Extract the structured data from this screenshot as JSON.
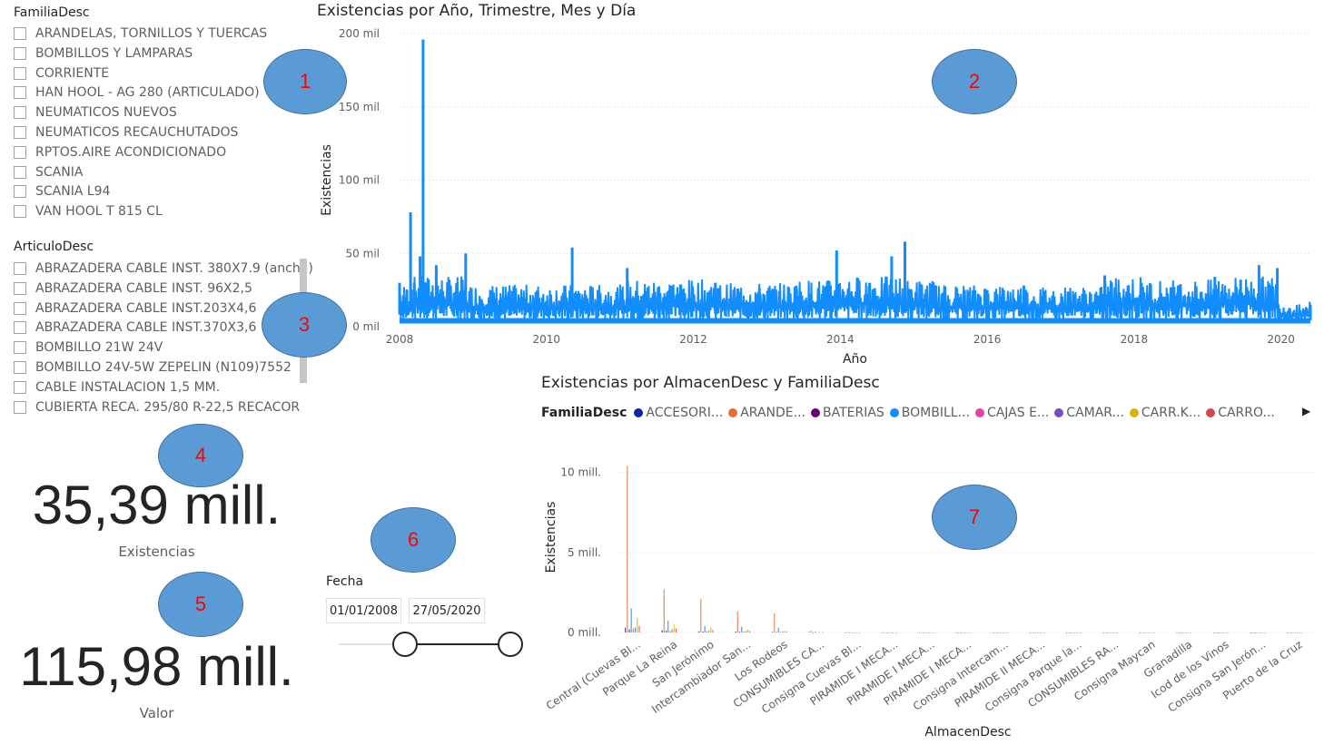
{
  "familia_slicer": {
    "title": "FamiliaDesc",
    "items": [
      "ARANDELAS, TORNILLOS Y TUERCAS",
      "BOMBILLOS Y LAMPARAS",
      "CORRIENTE",
      "HAN HOOL - AG 280 (ARTICULADO)",
      "NEUMATICOS NUEVOS",
      "NEUMATICOS RECAUCHUTADOS",
      "RPTOS.AIRE ACONDICIONADO",
      "SCANIA",
      "SCANIA L94",
      "VAN HOOL T 815 CL"
    ]
  },
  "articulo_slicer": {
    "title": "ArticuloDesc",
    "items": [
      "ABRAZADERA CABLE INST. 380X7.9 (ancha)",
      "ABRAZADERA CABLE INST. 96X2,5",
      "ABRAZADERA CABLE INST.203X4,6",
      "ABRAZADERA CABLE INST.370X3,6",
      "BOMBILLO 21W 24V",
      "BOMBILLO 24V-5W ZEPELIN (N109)7552",
      "CABLE INSTALACION 1,5 MM.",
      "CUBIERTA RECA. 295/80 R-22,5 RECACOR"
    ]
  },
  "kpi_existencias": {
    "value": "35,39 mill.",
    "label": "Existencias"
  },
  "kpi_valor": {
    "value": "115,98 mill.",
    "label": "Valor"
  },
  "fecha_slicer": {
    "title": "Fecha",
    "start": "01/01/2008",
    "end": "27/05/2020",
    "range_start_fraction": 0.39,
    "range_end_fraction": 1.0
  },
  "annotations": [
    "1",
    "2",
    "3",
    "4",
    "5",
    "6",
    "7"
  ],
  "colors": {
    "line": "#118dff",
    "bubble": "#5b9bd5",
    "bubble_text": "#ff0000"
  },
  "chart_data": [
    {
      "type": "line",
      "title": "Existencias por Año, Trimestre, Mes y Día",
      "xlabel": "Año",
      "ylabel": "Existencias",
      "xlim": [
        2008,
        2020.4
      ],
      "ylim": [
        0,
        200000
      ],
      "x_ticks": [
        "2008",
        "2010",
        "2012",
        "2014",
        "2016",
        "2018",
        "2020"
      ],
      "y_ticks": [
        "0 mil",
        "50 mil",
        "100 mil",
        "150 mil",
        "200 mil"
      ],
      "series": [
        {
          "x": [
            2008.0,
            2008.1,
            2008.15,
            2008.2,
            2008.28,
            2008.32,
            2008.36,
            2008.5,
            2008.9,
            2009.5,
            2010.35,
            2010.7,
            2011.1,
            2011.7,
            2012.3,
            2012.9,
            2013.4,
            2013.95,
            2014.4,
            2014.7,
            2014.88,
            2015.3,
            2016.0,
            2016.5,
            2017.1,
            2017.6,
            2018.1,
            2018.6,
            2019.1,
            2019.45,
            2019.7,
            2019.95,
            2020.4
          ],
          "y": [
            30000,
            25000,
            78000,
            30000,
            48000,
            196000,
            30000,
            42000,
            50000,
            25000,
            54000,
            25000,
            40000,
            28000,
            30000,
            26000,
            28000,
            52000,
            30000,
            48000,
            58000,
            28000,
            25000,
            28000,
            24000,
            35000,
            30000,
            28000,
            34000,
            32000,
            42000,
            40000,
            15000
          ]
        }
      ]
    },
    {
      "type": "bar",
      "title": "Existencias por AlmacenDesc y FamiliaDesc",
      "xlabel": "AlmacenDesc",
      "ylabel": "Existencias",
      "ylim": [
        0,
        11000000
      ],
      "y_ticks": [
        "0 mill.",
        "5 mill.",
        "10 mill."
      ],
      "legend_title": "FamiliaDesc",
      "legend": [
        {
          "name": "ACCESORI...",
          "color": "#12239e"
        },
        {
          "name": "ARANDE...",
          "color": "#e66c37"
        },
        {
          "name": "BATERIAS",
          "color": "#6b007b"
        },
        {
          "name": "BOMBILL...",
          "color": "#118dff"
        },
        {
          "name": "CAJAS E...",
          "color": "#e044a7"
        },
        {
          "name": "CAMAR...",
          "color": "#744ec2"
        },
        {
          "name": "CARR.K...",
          "color": "#d9b300"
        },
        {
          "name": "CARRO...",
          "color": "#d64550"
        }
      ],
      "categories": [
        "Central (Cuevas Bl...",
        "Parque La Reina",
        "San Jerónimo",
        "Intercambiador San...",
        "Los Rodeos",
        "CONSUMIBLES CA...",
        "Consigna Cuevas Bl...",
        "PIRAMIDE I MECA...",
        "PIRAMIDE I MECA...",
        "PIRAMIDE I MECA...",
        "Consigna Intercam...",
        "PIRAMIDE II MECA...",
        "Consigna Parque la...",
        "CONSUMIBLES RA...",
        "Consigna Maycan",
        "Granadilla",
        "Icod de los Vinos",
        "Consigna San Jerón...",
        "Puerto de la Cruz"
      ],
      "series": [
        {
          "name": "ACCESORI...",
          "values": [
            300000,
            150000,
            80000,
            60000,
            40000,
            30000,
            0,
            0,
            0,
            0,
            0,
            0,
            0,
            0,
            0,
            0,
            0,
            0,
            0
          ]
        },
        {
          "name": "ARANDE...",
          "values": [
            10400000,
            2700000,
            2100000,
            1300000,
            1200000,
            100000,
            40000,
            20000,
            10000,
            10000,
            0,
            0,
            0,
            0,
            0,
            0,
            0,
            0,
            0
          ]
        },
        {
          "name": "BATERIAS",
          "values": [
            200000,
            120000,
            60000,
            50000,
            30000,
            0,
            0,
            0,
            0,
            0,
            0,
            0,
            0,
            0,
            0,
            0,
            0,
            0,
            0
          ]
        },
        {
          "name": "BOMBILL...",
          "values": [
            1500000,
            750000,
            400000,
            350000,
            300000,
            60000,
            20000,
            20000,
            10000,
            10000,
            0,
            0,
            0,
            0,
            0,
            0,
            0,
            0,
            0
          ]
        },
        {
          "name": "CAJAS E...",
          "values": [
            250000,
            100000,
            80000,
            50000,
            30000,
            0,
            0,
            0,
            0,
            0,
            0,
            0,
            0,
            0,
            0,
            0,
            0,
            0,
            0
          ]
        },
        {
          "name": "CAMAR...",
          "values": [
            300000,
            200000,
            100000,
            80000,
            50000,
            20000,
            0,
            0,
            0,
            0,
            0,
            0,
            0,
            0,
            0,
            0,
            0,
            0,
            0
          ]
        },
        {
          "name": "CARR.K...",
          "values": [
            900000,
            500000,
            300000,
            200000,
            100000,
            20000,
            0,
            0,
            0,
            0,
            0,
            0,
            0,
            0,
            0,
            0,
            0,
            0,
            0
          ]
        },
        {
          "name": "CARRO...",
          "values": [
            400000,
            250000,
            150000,
            100000,
            80000,
            10000,
            0,
            0,
            0,
            0,
            0,
            0,
            0,
            0,
            0,
            0,
            0,
            0,
            0
          ]
        }
      ]
    }
  ]
}
